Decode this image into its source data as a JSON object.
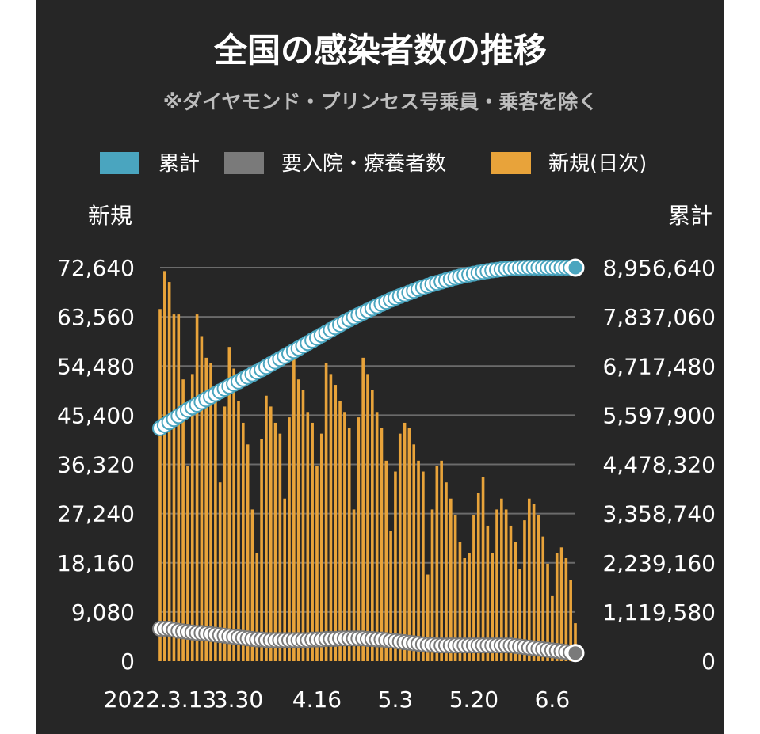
{
  "chart_data": {
    "type": "bar",
    "title": "全国の感染者数の推移",
    "subtitle": "※ダイヤモンド・プリンセス号乗員・乗客を除く",
    "legend": [
      {
        "label": "累計",
        "color": "#4aa5bf"
      },
      {
        "label": "要入院・療養者数",
        "color": "#7a7a7a"
      },
      {
        "label": "新規(日次)",
        "color": "#e8a33a"
      }
    ],
    "legend_placement": "top-center",
    "left_axis_title": "新規",
    "right_axis_title": "累計",
    "left_ticks": [
      "0",
      "9,080",
      "18,160",
      "27,240",
      "36,320",
      "45,400",
      "54,480",
      "63,560",
      "72,640"
    ],
    "right_ticks": [
      "0",
      "1,119,580",
      "2,239,160",
      "3,358,740",
      "4,478,320",
      "5,597,900",
      "6,717,480",
      "7,837,060",
      "8,956,640"
    ],
    "left_ylim": [
      0,
      72640
    ],
    "right_ylim": [
      0,
      8956640
    ],
    "grid": true,
    "x_tick_labels": [
      {
        "label": "2022.3.13",
        "index": 0
      },
      {
        "label": "3.30",
        "index": 17
      },
      {
        "label": "4.16",
        "index": 34
      },
      {
        "label": "5.3",
        "index": 51
      },
      {
        "label": "5.20",
        "index": 68
      },
      {
        "label": "6.6",
        "index": 85
      }
    ],
    "new_daily": [
      65000,
      72000,
      70000,
      64000,
      64000,
      52000,
      36000,
      53000,
      64000,
      60000,
      56000,
      55000,
      49000,
      33000,
      47000,
      58000,
      54000,
      48000,
      44000,
      40000,
      28000,
      20000,
      41000,
      49000,
      47000,
      44000,
      42000,
      30000,
      45000,
      56000,
      52000,
      50000,
      46000,
      44000,
      36000,
      42000,
      55000,
      53000,
      51000,
      48000,
      46000,
      43000,
      28000,
      45000,
      56000,
      53000,
      50000,
      46000,
      43000,
      37000,
      24000,
      35000,
      42000,
      44000,
      43000,
      40000,
      37000,
      35000,
      16000,
      28000,
      36000,
      37000,
      33000,
      30000,
      27000,
      22000,
      19000,
      20000,
      27000,
      31000,
      34000,
      25000,
      20000,
      28000,
      30000,
      28000,
      25000,
      22000,
      17000,
      26000,
      30000,
      29000,
      27000,
      23000,
      18000,
      12000,
      20000,
      21000,
      19000,
      15000,
      7000
    ],
    "cumulative": [
      5300000,
      5370000,
      5440000,
      5510000,
      5580000,
      5650000,
      5720000,
      5780000,
      5840000,
      5900000,
      5960000,
      6020000,
      6080000,
      6140000,
      6200000,
      6255000,
      6310000,
      6365000,
      6420000,
      6475000,
      6530000,
      6585000,
      6640000,
      6700000,
      6760000,
      6820000,
      6880000,
      6940000,
      7000000,
      7060000,
      7120000,
      7180000,
      7240000,
      7300000,
      7360000,
      7420000,
      7480000,
      7540000,
      7600000,
      7660000,
      7720000,
      7775000,
      7830000,
      7880000,
      7930000,
      7980000,
      8030000,
      8080000,
      8130000,
      8180000,
      8225000,
      8270000,
      8310000,
      8350000,
      8390000,
      8430000,
      8470000,
      8510000,
      8545000,
      8580000,
      8610000,
      8640000,
      8670000,
      8700000,
      8730000,
      8755000,
      8780000,
      8800000,
      8820000,
      8840000,
      8860000,
      8878000,
      8895000,
      8908000,
      8920000,
      8930000,
      8938000,
      8945000,
      8950000,
      8955000,
      8960000,
      8964000,
      8968000,
      8971000,
      8974000,
      8977000,
      8980000,
      8983000,
      8986000,
      8989000,
      8992000
    ],
    "inpatients_left_scale": [
      6000,
      6000,
      6000,
      5800,
      5600,
      5500,
      5400,
      5300,
      5200,
      5200,
      5100,
      5000,
      4900,
      4800,
      4700,
      4600,
      4500,
      4400,
      4300,
      4200,
      4100,
      4000,
      4000,
      3900,
      3900,
      3900,
      3900,
      3900,
      3900,
      3900,
      3900,
      3900,
      3900,
      4000,
      4000,
      4000,
      4100,
      4100,
      4100,
      4200,
      4200,
      4200,
      4200,
      4200,
      4200,
      4100,
      4100,
      4000,
      4000,
      3900,
      3800,
      3700,
      3600,
      3500,
      3400,
      3300,
      3200,
      3100,
      3000,
      3000,
      2900,
      2900,
      2900,
      2900,
      2900,
      2900,
      2900,
      2900,
      2900,
      2900,
      2900,
      2900,
      2900,
      2900,
      2900,
      2900,
      2900,
      2800,
      2700,
      2600,
      2500,
      2400,
      2300,
      2200,
      2100,
      2000,
      1900,
      1800,
      1700,
      1600,
      1500
    ]
  }
}
